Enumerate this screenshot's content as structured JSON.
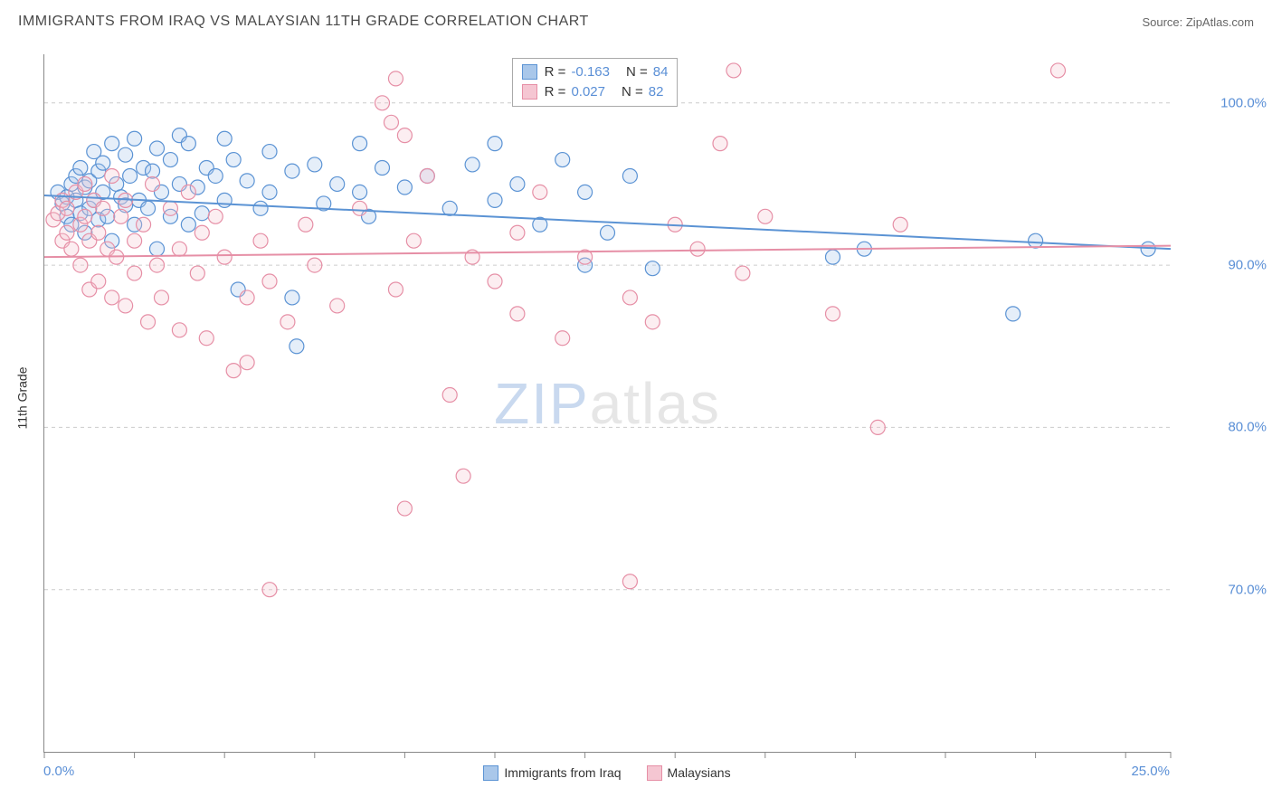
{
  "header": {
    "title": "IMMIGRANTS FROM IRAQ VS MALAYSIAN 11TH GRADE CORRELATION CHART",
    "source_prefix": "Source: ",
    "source_name": "ZipAtlas.com"
  },
  "watermark": {
    "part1": "ZIP",
    "part2": "atlas"
  },
  "chart": {
    "type": "scatter",
    "ylabel": "11th Grade",
    "xlim": [
      0,
      25
    ],
    "ylim": [
      60,
      103
    ],
    "xticks": [
      0,
      2,
      4,
      6,
      8,
      10,
      12,
      14,
      16,
      18,
      20,
      22,
      24,
      25
    ],
    "xtick_labels": [
      {
        "x": 0,
        "label": "0.0%"
      },
      {
        "x": 25,
        "label": "25.0%"
      }
    ],
    "ytick_labels": [
      {
        "y": 100,
        "label": "100.0%"
      },
      {
        "y": 90,
        "label": "90.0%"
      },
      {
        "y": 80,
        "label": "80.0%"
      },
      {
        "y": 70,
        "label": "70.0%"
      }
    ],
    "grid_color": "#cccccc",
    "axis_color": "#888888",
    "background_color": "#ffffff",
    "marker_radius": 8,
    "marker_stroke_width": 1.2,
    "marker_fill_opacity": 0.3,
    "line_width": 2,
    "series": [
      {
        "name": "Immigrants from Iraq",
        "color_stroke": "#5b93d4",
        "color_fill": "#a9c7ea",
        "R": "-0.163",
        "N": "84",
        "trend_y_at_xmin": 94.3,
        "trend_y_at_xmax": 91.0,
        "points": [
          [
            0.3,
            94.5
          ],
          [
            0.4,
            93.8
          ],
          [
            0.5,
            94.2
          ],
          [
            0.5,
            93.0
          ],
          [
            0.6,
            95.0
          ],
          [
            0.6,
            92.5
          ],
          [
            0.7,
            94.0
          ],
          [
            0.7,
            95.5
          ],
          [
            0.8,
            93.2
          ],
          [
            0.8,
            96.0
          ],
          [
            0.9,
            94.8
          ],
          [
            0.9,
            92.0
          ],
          [
            1.0,
            95.2
          ],
          [
            1.0,
            93.5
          ],
          [
            1.1,
            97.0
          ],
          [
            1.1,
            94.0
          ],
          [
            1.2,
            92.8
          ],
          [
            1.2,
            95.8
          ],
          [
            1.3,
            94.5
          ],
          [
            1.3,
            96.3
          ],
          [
            1.4,
            93.0
          ],
          [
            1.5,
            97.5
          ],
          [
            1.5,
            91.5
          ],
          [
            1.6,
            95.0
          ],
          [
            1.7,
            94.2
          ],
          [
            1.8,
            96.8
          ],
          [
            1.8,
            93.7
          ],
          [
            1.9,
            95.5
          ],
          [
            2.0,
            92.5
          ],
          [
            2.0,
            97.8
          ],
          [
            2.1,
            94.0
          ],
          [
            2.2,
            96.0
          ],
          [
            2.3,
            93.5
          ],
          [
            2.4,
            95.8
          ],
          [
            2.5,
            97.2
          ],
          [
            2.5,
            91.0
          ],
          [
            2.6,
            94.5
          ],
          [
            2.8,
            96.5
          ],
          [
            2.8,
            93.0
          ],
          [
            3.0,
            98.0
          ],
          [
            3.0,
            95.0
          ],
          [
            3.2,
            92.5
          ],
          [
            3.2,
            97.5
          ],
          [
            3.4,
            94.8
          ],
          [
            3.5,
            93.2
          ],
          [
            3.6,
            96.0
          ],
          [
            3.8,
            95.5
          ],
          [
            4.0,
            97.8
          ],
          [
            4.0,
            94.0
          ],
          [
            4.2,
            96.5
          ],
          [
            4.3,
            88.5
          ],
          [
            4.5,
            95.2
          ],
          [
            4.8,
            93.5
          ],
          [
            5.0,
            97.0
          ],
          [
            5.0,
            94.5
          ],
          [
            5.5,
            95.8
          ],
          [
            5.5,
            88.0
          ],
          [
            5.6,
            85.0
          ],
          [
            6.0,
            96.2
          ],
          [
            6.2,
            93.8
          ],
          [
            6.5,
            95.0
          ],
          [
            7.0,
            94.5
          ],
          [
            7.0,
            97.5
          ],
          [
            7.2,
            93.0
          ],
          [
            7.5,
            96.0
          ],
          [
            8.0,
            94.8
          ],
          [
            8.5,
            95.5
          ],
          [
            9.0,
            93.5
          ],
          [
            9.5,
            96.2
          ],
          [
            10.0,
            97.5
          ],
          [
            10.0,
            94.0
          ],
          [
            10.5,
            95.0
          ],
          [
            11.0,
            92.5
          ],
          [
            11.5,
            96.5
          ],
          [
            12.0,
            90.0
          ],
          [
            12.0,
            94.5
          ],
          [
            12.5,
            92.0
          ],
          [
            13.0,
            95.5
          ],
          [
            13.5,
            89.8
          ],
          [
            17.5,
            90.5
          ],
          [
            18.2,
            91.0
          ],
          [
            21.5,
            87.0
          ],
          [
            22.0,
            91.5
          ],
          [
            24.5,
            91.0
          ]
        ]
      },
      {
        "name": "Malaysians",
        "color_stroke": "#e68fa6",
        "color_fill": "#f5c6d2",
        "R": "0.027",
        "N": "82",
        "trend_y_at_xmin": 90.5,
        "trend_y_at_xmax": 91.2,
        "points": [
          [
            0.2,
            92.8
          ],
          [
            0.3,
            93.2
          ],
          [
            0.4,
            91.5
          ],
          [
            0.4,
            94.0
          ],
          [
            0.5,
            92.0
          ],
          [
            0.5,
            93.5
          ],
          [
            0.6,
            91.0
          ],
          [
            0.7,
            94.5
          ],
          [
            0.8,
            92.5
          ],
          [
            0.8,
            90.0
          ],
          [
            0.9,
            93.0
          ],
          [
            0.9,
            95.0
          ],
          [
            1.0,
            91.5
          ],
          [
            1.0,
            88.5
          ],
          [
            1.1,
            94.0
          ],
          [
            1.2,
            92.0
          ],
          [
            1.2,
            89.0
          ],
          [
            1.3,
            93.5
          ],
          [
            1.4,
            91.0
          ],
          [
            1.5,
            88.0
          ],
          [
            1.5,
            95.5
          ],
          [
            1.6,
            90.5
          ],
          [
            1.7,
            93.0
          ],
          [
            1.8,
            87.5
          ],
          [
            1.8,
            94.0
          ],
          [
            2.0,
            91.5
          ],
          [
            2.0,
            89.5
          ],
          [
            2.2,
            92.5
          ],
          [
            2.3,
            86.5
          ],
          [
            2.4,
            95.0
          ],
          [
            2.5,
            90.0
          ],
          [
            2.6,
            88.0
          ],
          [
            2.8,
            93.5
          ],
          [
            3.0,
            91.0
          ],
          [
            3.0,
            86.0
          ],
          [
            3.2,
            94.5
          ],
          [
            3.4,
            89.5
          ],
          [
            3.5,
            92.0
          ],
          [
            3.6,
            85.5
          ],
          [
            3.8,
            93.0
          ],
          [
            4.0,
            90.5
          ],
          [
            4.2,
            83.5
          ],
          [
            4.5,
            88.0
          ],
          [
            4.5,
            84.0
          ],
          [
            4.8,
            91.5
          ],
          [
            5.0,
            70.0
          ],
          [
            5.0,
            89.0
          ],
          [
            5.4,
            86.5
          ],
          [
            5.8,
            92.5
          ],
          [
            6.0,
            90.0
          ],
          [
            6.5,
            87.5
          ],
          [
            7.0,
            93.5
          ],
          [
            7.5,
            100.0
          ],
          [
            7.7,
            98.8
          ],
          [
            7.8,
            101.5
          ],
          [
            7.8,
            88.5
          ],
          [
            8.0,
            98.0
          ],
          [
            8.0,
            75.0
          ],
          [
            8.2,
            91.5
          ],
          [
            8.5,
            95.5
          ],
          [
            9.0,
            82.0
          ],
          [
            9.3,
            77.0
          ],
          [
            9.5,
            90.5
          ],
          [
            10.0,
            89.0
          ],
          [
            10.5,
            92.0
          ],
          [
            10.5,
            87.0
          ],
          [
            11.0,
            94.5
          ],
          [
            11.5,
            85.5
          ],
          [
            12.0,
            90.5
          ],
          [
            13.0,
            88.0
          ],
          [
            13.0,
            70.5
          ],
          [
            13.5,
            86.5
          ],
          [
            14.0,
            92.5
          ],
          [
            14.5,
            91.0
          ],
          [
            15.0,
            97.5
          ],
          [
            15.3,
            102.0
          ],
          [
            15.5,
            89.5
          ],
          [
            16.0,
            93.0
          ],
          [
            17.5,
            87.0
          ],
          [
            18.5,
            80.0
          ],
          [
            19.0,
            92.5
          ],
          [
            22.5,
            102.0
          ]
        ]
      }
    ],
    "bottom_legend": [
      {
        "label": "Immigrants from Iraq",
        "stroke": "#5b93d4",
        "fill": "#a9c7ea"
      },
      {
        "label": "Malaysians",
        "stroke": "#e68fa6",
        "fill": "#f5c6d2"
      }
    ],
    "stats_legend": {
      "left_pct": 41.5,
      "top_pct": 0.5,
      "rows": [
        {
          "stroke": "#5b93d4",
          "fill": "#a9c7ea",
          "R_lab": "R =",
          "R_val": "-0.163",
          "N_lab": "N =",
          "N_val": "84"
        },
        {
          "stroke": "#e68fa6",
          "fill": "#f5c6d2",
          "R_lab": "R =",
          "R_val": "0.027",
          "N_lab": "N =",
          "N_val": "82"
        }
      ]
    }
  }
}
